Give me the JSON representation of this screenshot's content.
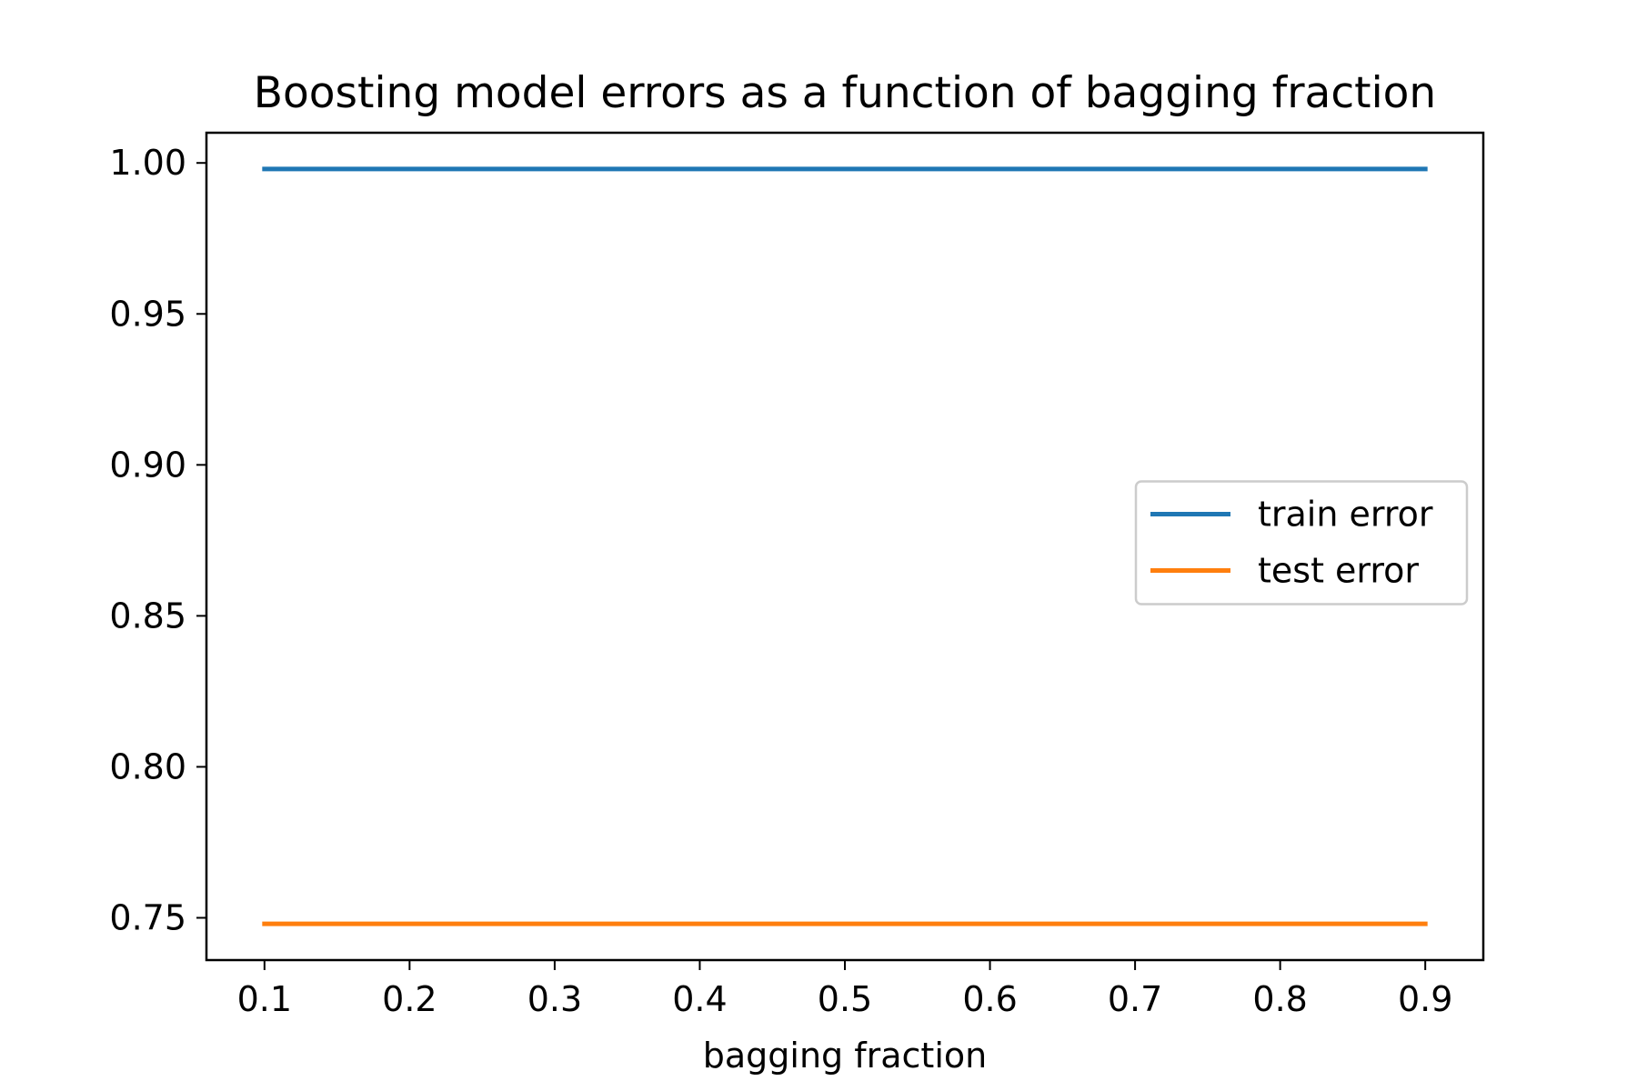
{
  "chart_data": {
    "type": "line",
    "title": "Boosting model errors as a function of bagging fraction",
    "xlabel": "bagging fraction",
    "ylabel": "",
    "x": [
      0.1,
      0.2,
      0.3,
      0.4,
      0.5,
      0.6,
      0.7,
      0.8,
      0.9
    ],
    "xlim": [
      0.06,
      0.94
    ],
    "ylim": [
      0.736,
      1.01
    ],
    "xticks": [
      0.1,
      0.2,
      0.3,
      0.4,
      0.5,
      0.6,
      0.7,
      0.8,
      0.9
    ],
    "xtick_labels": [
      "0.1",
      "0.2",
      "0.3",
      "0.4",
      "0.5",
      "0.6",
      "0.7",
      "0.8",
      "0.9"
    ],
    "yticks": [
      0.75,
      0.8,
      0.85,
      0.9,
      0.95,
      1.0
    ],
    "ytick_labels": [
      "0.75",
      "0.80",
      "0.85",
      "0.90",
      "0.95",
      "1.00"
    ],
    "grid": false,
    "legend_position": "center-right",
    "series": [
      {
        "name": "train error",
        "color": "#1f77b4",
        "values": [
          0.998,
          0.998,
          0.998,
          0.998,
          0.998,
          0.998,
          0.998,
          0.998,
          0.998
        ]
      },
      {
        "name": "test error",
        "color": "#ff7f0e",
        "values": [
          0.748,
          0.748,
          0.748,
          0.748,
          0.748,
          0.748,
          0.748,
          0.748,
          0.748
        ]
      }
    ]
  }
}
